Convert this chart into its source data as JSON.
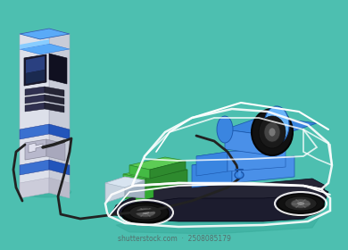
{
  "bg_color": "#4dbfb0",
  "white": "#ffffff",
  "car_chassis_dark": "#1c1c2e",
  "car_chassis_mid": "#252535",
  "car_frame_dark": "#111120",
  "wheel_outer": "#111111",
  "wheel_inner": "#222222",
  "wheel_rim": "#555555",
  "wheel_hub": "#888888",
  "green_top": "#5dcc55",
  "green_mid": "#44bb44",
  "green_dark": "#2e8a2e",
  "green_small": "#33aa33",
  "blue_tank_light": "#6ab4f8",
  "blue_tank_mid": "#3a85e0",
  "blue_tank_dark": "#1a55aa",
  "blue_body": "#4a90e8",
  "grey_front": "#c8d4e0",
  "grey_front_dark": "#a0b0c0",
  "charger_body": "#dde0ea",
  "charger_side": "#c8ccd8",
  "charger_blue_top": "#5aaaf8",
  "charger_blue_stripe": "#3a70d0",
  "charger_blue_lower": "#2255bb",
  "charger_screen_bg": "#1a1a30",
  "charger_screen_glow": "#2a3a60",
  "charger_buttons": "#303050",
  "charger_nozzle": "#ccccdd",
  "cable_dark": "#222222",
  "shadow_color": "#35a898",
  "watermark_color": "#555555"
}
